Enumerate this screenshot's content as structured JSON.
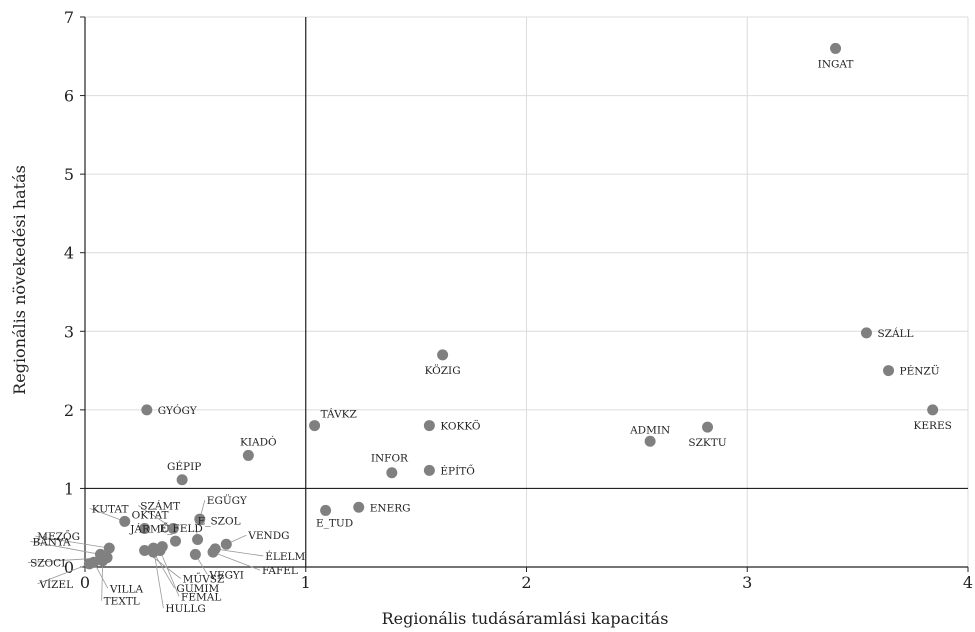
{
  "chart_data": {
    "type": "scatter",
    "title": "",
    "xlabel": "Regionális tudásáramlási kapacitás",
    "ylabel": "Regionális növekedési hatás",
    "xlim": [
      0,
      4
    ],
    "ylim": [
      0,
      7
    ],
    "xticks": [
      "0",
      "1",
      "2",
      "3",
      "4"
    ],
    "yticks": [
      "0",
      "1",
      "2",
      "3",
      "4",
      "5",
      "6",
      "7"
    ],
    "reference_lines": {
      "x": 1,
      "y": 1
    },
    "grid": true,
    "point_color": "#808080",
    "points": [
      {
        "label": "INGAT",
        "x": 3.4,
        "y": 6.6
      },
      {
        "label": "SZÁLL",
        "x": 3.54,
        "y": 2.98
      },
      {
        "label": "PÉNZÜ",
        "x": 3.64,
        "y": 2.5
      },
      {
        "label": "KERES",
        "x": 3.84,
        "y": 2.0
      },
      {
        "label": "KÖZIG",
        "x": 1.62,
        "y": 2.7
      },
      {
        "label": "GYÓGY",
        "x": 0.28,
        "y": 2.0
      },
      {
        "label": "TÁVKZ",
        "x": 1.04,
        "y": 1.8
      },
      {
        "label": "KOKKÖ",
        "x": 1.56,
        "y": 1.8
      },
      {
        "label": "ADMIN",
        "x": 2.56,
        "y": 1.6
      },
      {
        "label": "SZKTU",
        "x": 2.82,
        "y": 1.78
      },
      {
        "label": "KIADÓ",
        "x": 0.74,
        "y": 1.42
      },
      {
        "label": "INFOR",
        "x": 1.39,
        "y": 1.2
      },
      {
        "label": "ÉPÍTŐ",
        "x": 1.56,
        "y": 1.23
      },
      {
        "label": "GÉPIP",
        "x": 0.44,
        "y": 1.11
      },
      {
        "label": "ENERG",
        "x": 1.24,
        "y": 0.76
      },
      {
        "label": "E_TUD",
        "x": 1.09,
        "y": 0.72
      },
      {
        "label": "EGÜGY",
        "x": 0.52,
        "y": 0.61
      },
      {
        "label": "KUTAT",
        "x": 0.18,
        "y": 0.58
      },
      {
        "label": "SZÁMT",
        "x": 0.4,
        "y": 0.49
      },
      {
        "label": "OKTAT",
        "x": 0.27,
        "y": 0.49
      },
      {
        "label": "E_SZOL",
        "x": 0.51,
        "y": 0.35
      },
      {
        "label": "E_FELD",
        "x": 0.41,
        "y": 0.33
      },
      {
        "label": "VENDG",
        "x": 0.64,
        "y": 0.29
      },
      {
        "label": "JÁRMŰ",
        "x": 0.35,
        "y": 0.26
      },
      {
        "label": "ÉLELM",
        "x": 0.59,
        "y": 0.23
      },
      {
        "label": "MEZŐG",
        "x": 0.11,
        "y": 0.24
      },
      {
        "label": "FAFEL",
        "x": 0.58,
        "y": 0.19
      },
      {
        "label": "BÁNYA",
        "x": 0.07,
        "y": 0.16
      },
      {
        "label": "VEGYI",
        "x": 0.5,
        "y": 0.16
      },
      {
        "label": "SZOCI",
        "x": 0.1,
        "y": 0.12
      },
      {
        "label": "GUMIM",
        "x": 0.31,
        "y": 0.19
      },
      {
        "label": "MŰVSZ",
        "x": 0.27,
        "y": 0.21
      },
      {
        "label": "FÉMAL",
        "x": 0.34,
        "y": 0.21
      },
      {
        "label": "HULLG",
        "x": 0.31,
        "y": 0.24
      },
      {
        "label": "TEXTL",
        "x": 0.08,
        "y": 0.08
      },
      {
        "label": "VILLA",
        "x": 0.04,
        "y": 0.06
      },
      {
        "label": "VÍZEL",
        "x": 0.02,
        "y": 0.04
      }
    ]
  }
}
